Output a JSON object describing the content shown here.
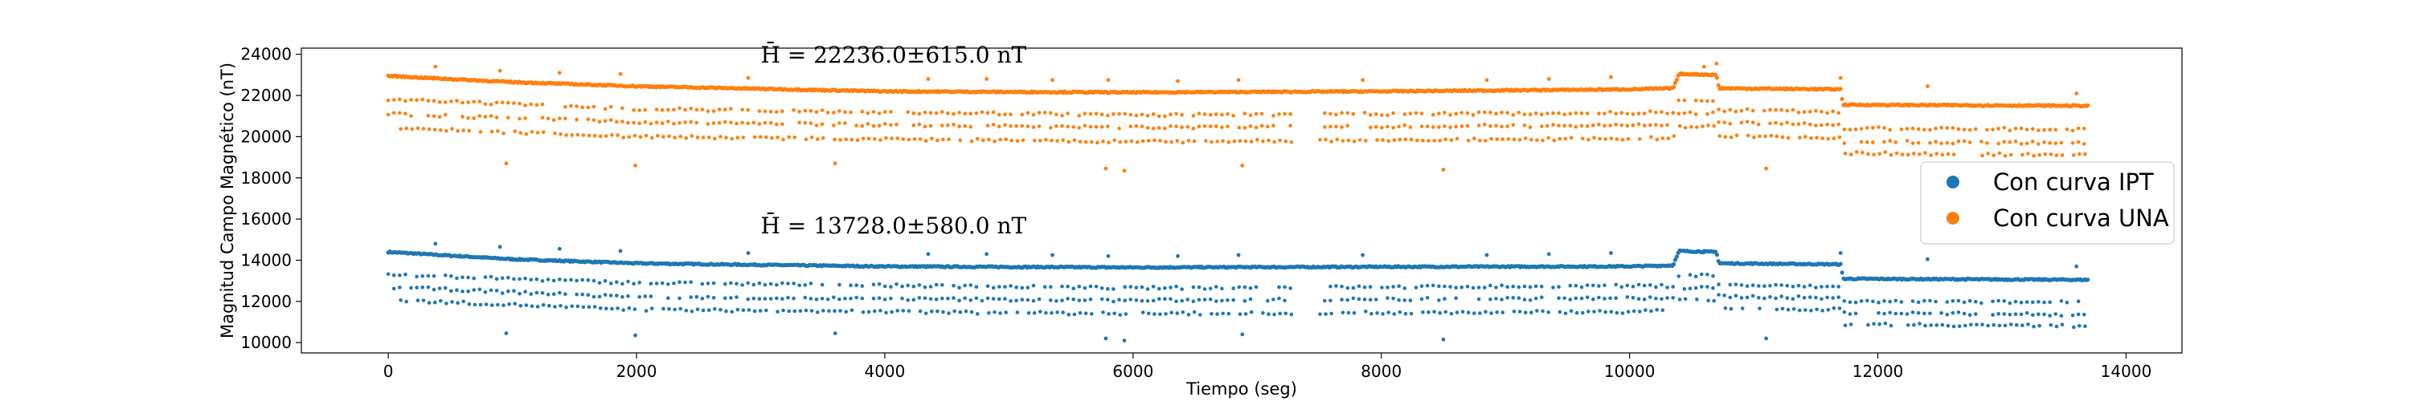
{
  "chart_data": {
    "type": "scatter",
    "xlabel": "Tiempo (seg)",
    "ylabel": "Magnitud Campo Magnético (nT)",
    "xlim": [
      -700,
      14450
    ],
    "ylim": [
      9500,
      24300
    ],
    "xticks": [
      0,
      2000,
      4000,
      6000,
      8000,
      10000,
      12000,
      14000
    ],
    "yticks": [
      10000,
      12000,
      14000,
      16000,
      18000,
      20000,
      22000,
      24000
    ],
    "grid": false,
    "legend_position": "right",
    "series": [
      {
        "name": "Con curva IPT",
        "color": "#1f77b4",
        "annotation": "H̄ = 13728.0±580.0 nT",
        "annotation_pos": [
          3000,
          15300
        ],
        "main_band": [
          [
            0,
            14400
          ],
          [
            1000,
            14050
          ],
          [
            2000,
            13850
          ],
          [
            4000,
            13700
          ],
          [
            6000,
            13650
          ],
          [
            8000,
            13680
          ],
          [
            10000,
            13700
          ],
          [
            10350,
            13750
          ],
          [
            10400,
            14450
          ],
          [
            10700,
            14400
          ],
          [
            10720,
            13850
          ],
          [
            11700,
            13800
          ],
          [
            11720,
            13100
          ],
          [
            13700,
            13050
          ]
        ],
        "lower_bands": [
          [
            [
              0,
              13300
            ],
            [
              2000,
              12900
            ],
            [
              6000,
              12650
            ],
            [
              10000,
              12750
            ],
            [
              10350,
              12750
            ],
            [
              10400,
              13300
            ],
            [
              10700,
              13250
            ],
            [
              10720,
              12800
            ],
            [
              11700,
              12700
            ],
            [
              11720,
              12000
            ],
            [
              13700,
              11950
            ]
          ],
          [
            [
              0,
              12700
            ],
            [
              2000,
              12200
            ],
            [
              6000,
              12050
            ],
            [
              10000,
              12150
            ],
            [
              10350,
              12150
            ],
            [
              10400,
              12650
            ],
            [
              10700,
              12650
            ],
            [
              10720,
              12250
            ],
            [
              11700,
              12150
            ],
            [
              11720,
              11450
            ],
            [
              13700,
              11350
            ]
          ],
          [
            [
              100,
              12050
            ],
            [
              2000,
              11600
            ],
            [
              6000,
              11400
            ],
            [
              10000,
              11500
            ],
            [
              10350,
              11550
            ],
            [
              10400,
              12050
            ],
            [
              10700,
              12050
            ],
            [
              10720,
              11650
            ],
            [
              11700,
              11600
            ],
            [
              11720,
              10900
            ],
            [
              13700,
              10800
            ]
          ]
        ],
        "outliers": [
          [
            380,
            14800
          ],
          [
            900,
            14650
          ],
          [
            1380,
            14550
          ],
          [
            1870,
            14450
          ],
          [
            2900,
            14350
          ],
          [
            4350,
            14300
          ],
          [
            4820,
            14300
          ],
          [
            5350,
            14250
          ],
          [
            5800,
            14200
          ],
          [
            6360,
            14200
          ],
          [
            6850,
            14250
          ],
          [
            7850,
            14250
          ],
          [
            8850,
            14250
          ],
          [
            9350,
            14300
          ],
          [
            9850,
            14350
          ],
          [
            10600,
            14450
          ],
          [
            11700,
            14350
          ],
          [
            12400,
            14050
          ],
          [
            13600,
            13700
          ],
          [
            950,
            10450
          ],
          [
            1990,
            10350
          ],
          [
            3600,
            10450
          ],
          [
            5780,
            10200
          ],
          [
            5930,
            10100
          ],
          [
            6880,
            10400
          ],
          [
            8500,
            10150
          ],
          [
            11100,
            10200
          ]
        ]
      },
      {
        "name": "Con curva UNA",
        "color": "#ff7f0e",
        "annotation": "H̄ = 22236.0±615.0 nT",
        "annotation_pos": [
          3000,
          23600
        ],
        "main_band": [
          [
            0,
            22950
          ],
          [
            1000,
            22650
          ],
          [
            2000,
            22450
          ],
          [
            4000,
            22200
          ],
          [
            6000,
            22150
          ],
          [
            8000,
            22200
          ],
          [
            10000,
            22300
          ],
          [
            10350,
            22350
          ],
          [
            10400,
            23050
          ],
          [
            10700,
            23000
          ],
          [
            10720,
            22350
          ],
          [
            11700,
            22300
          ],
          [
            11720,
            21550
          ],
          [
            13700,
            21500
          ]
        ],
        "lower_bands": [
          [
            [
              0,
              21800
            ],
            [
              2000,
              21350
            ],
            [
              6000,
              21050
            ],
            [
              10000,
              21150
            ],
            [
              10350,
              21200
            ],
            [
              10400,
              21800
            ],
            [
              10700,
              21750
            ],
            [
              10720,
              21300
            ],
            [
              11700,
              21200
            ],
            [
              11720,
              20400
            ],
            [
              13700,
              20350
            ]
          ],
          [
            [
              0,
              21100
            ],
            [
              2000,
              20700
            ],
            [
              6000,
              20450
            ],
            [
              10000,
              20550
            ],
            [
              10350,
              20550
            ],
            [
              10400,
              21150
            ],
            [
              10700,
              21150
            ],
            [
              10720,
              20700
            ],
            [
              11700,
              20550
            ],
            [
              11720,
              19750
            ],
            [
              13700,
              19700
            ]
          ],
          [
            [
              100,
              20400
            ],
            [
              2000,
              20000
            ],
            [
              6000,
              19750
            ],
            [
              10000,
              19900
            ],
            [
              10350,
              19950
            ],
            [
              10400,
              20500
            ],
            [
              10700,
              20500
            ],
            [
              10720,
              20050
            ],
            [
              11700,
              19950
            ],
            [
              11720,
              19200
            ],
            [
              13700,
              19100
            ]
          ]
        ],
        "outliers": [
          [
            380,
            23400
          ],
          [
            900,
            23200
          ],
          [
            1380,
            23100
          ],
          [
            1870,
            23050
          ],
          [
            2900,
            22850
          ],
          [
            4350,
            22800
          ],
          [
            4820,
            22800
          ],
          [
            5350,
            22750
          ],
          [
            5800,
            22750
          ],
          [
            6360,
            22700
          ],
          [
            6850,
            22750
          ],
          [
            7850,
            22750
          ],
          [
            8850,
            22750
          ],
          [
            9350,
            22800
          ],
          [
            9850,
            22900
          ],
          [
            10600,
            23400
          ],
          [
            10700,
            23550
          ],
          [
            11700,
            22850
          ],
          [
            12400,
            22450
          ],
          [
            13600,
            22100
          ],
          [
            950,
            18700
          ],
          [
            1990,
            18600
          ],
          [
            3600,
            18700
          ],
          [
            5780,
            18450
          ],
          [
            5930,
            18350
          ],
          [
            6880,
            18600
          ],
          [
            8500,
            18400
          ],
          [
            11100,
            18450
          ]
        ]
      }
    ]
  }
}
